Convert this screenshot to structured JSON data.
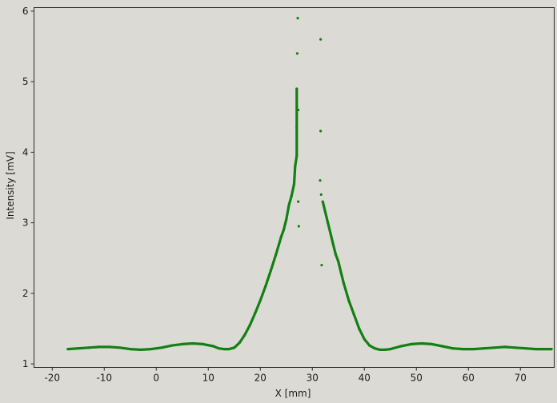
{
  "chart_data": {
    "type": "scatter",
    "xlabel": "X [mm]",
    "ylabel": "Intensity [mV]",
    "xlim": [
      -23.5,
      76.5
    ],
    "ylim": [
      0.95,
      6.05
    ],
    "xticks": [
      -20,
      -10,
      0,
      10,
      20,
      30,
      40,
      50,
      60,
      70
    ],
    "yticks": [
      1,
      2,
      3,
      4,
      5,
      6
    ],
    "xtick_labels": [
      "-20",
      "-10",
      "0",
      "10",
      "20",
      "30",
      "40",
      "50",
      "60",
      "70"
    ],
    "ytick_labels": [
      "1",
      "2",
      "3",
      "4",
      "5",
      "6"
    ],
    "grid": false,
    "series": [
      {
        "color": "#138013",
        "x": [
          -17,
          -15,
          -13,
          -11,
          -9,
          -7,
          -5,
          -3,
          -1,
          1,
          3,
          5,
          7,
          9,
          11,
          12,
          13,
          14,
          15,
          16,
          17,
          18,
          19,
          20,
          21,
          22,
          23,
          24,
          24.5,
          25,
          25.5,
          26,
          26.5,
          26.7,
          27,
          27,
          27,
          27.1,
          27.2,
          27.3,
          27.3,
          27.4,
          31.5,
          31.6,
          31.6,
          31.7,
          31.8,
          32,
          32.5,
          33,
          33.5,
          34,
          34.5,
          35,
          35.5,
          36,
          37,
          38,
          39,
          40,
          41,
          42,
          43,
          44,
          45,
          47,
          49,
          51,
          53,
          55,
          57,
          59,
          61,
          63,
          65,
          67,
          69,
          71,
          73,
          75,
          76
        ],
        "y": [
          1.21,
          1.22,
          1.23,
          1.24,
          1.24,
          1.23,
          1.21,
          1.2,
          1.21,
          1.23,
          1.26,
          1.28,
          1.29,
          1.28,
          1.25,
          1.22,
          1.21,
          1.21,
          1.23,
          1.3,
          1.41,
          1.55,
          1.72,
          1.9,
          2.1,
          2.32,
          2.55,
          2.8,
          2.9,
          3.05,
          3.25,
          3.38,
          3.55,
          3.8,
          3.95,
          4.35,
          4.9,
          5.4,
          5.9,
          4.6,
          3.3,
          2.95,
          3.6,
          4.3,
          5.6,
          3.4,
          2.4,
          3.3,
          3.15,
          3.0,
          2.85,
          2.7,
          2.55,
          2.45,
          2.3,
          2.15,
          1.9,
          1.7,
          1.5,
          1.35,
          1.26,
          1.22,
          1.2,
          1.2,
          1.21,
          1.25,
          1.28,
          1.29,
          1.28,
          1.25,
          1.22,
          1.21,
          1.21,
          1.22,
          1.23,
          1.24,
          1.23,
          1.22,
          1.21,
          1.21,
          1.21
        ]
      }
    ]
  }
}
